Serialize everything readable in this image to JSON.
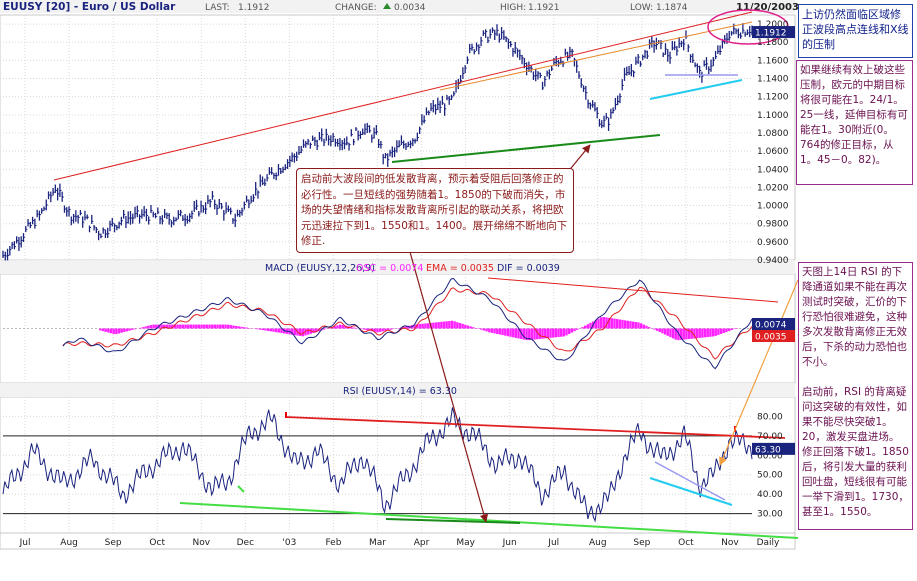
{
  "header": {
    "symbol": "EUUSY [20] - Euro / US Dollar",
    "last_label": "LAST:",
    "last": "1.1912",
    "change_label": "CHANGE:",
    "change": "0.0034",
    "high_label": "HIGH:",
    "high": "1.1921",
    "low_label": "LOW:",
    "low": "1.1874",
    "date": "11/20/2003"
  },
  "annotations": {
    "blue_note": "上访仍然面临区域修正波段高点连线和X线的压制",
    "purple_note_1": "如果继续有效上破这些压制，欧元的中期目标将很可能在1。24/1。25一线，延伸目标有可能在1。30附近(0。764的修正目标，从1。45－0。82)。",
    "red_note": "启动前大波段间的低发散背离，预示着受阻后回落修正的必行性。一旦短线的强势随着1。1850的下破而消失，市场的失望情绪和指标发散背离所引起的联动关系，将把欧元迅速拉下到1。1550和1。1400。展开绵绵不断地向下修正.",
    "purple_note_2a": "天图上14日 RSI 的下降通道如果不能在再次测试时突破，汇价的下行恐怕很难避免，这种多次发散背离修正无效后，下杀的动力恐怕也不小。",
    "purple_note_2b": "启动前，RSI 的背离疑问这突破的有效性，如果不能尽快突破1。20，激发买盘进场。修正回落下破1。1850后，将引发大量的获利回吐盘，短线很有可能一举下滑到1。1730，甚至1。1550。"
  },
  "colors": {
    "price": "#1a237e",
    "trendline_red": "#e02020",
    "trendline_orange": "#e8882a",
    "support_green": "#1a8a1a",
    "cyan": "#22ccee",
    "lavender": "#9999ee",
    "macd_line": "#1a237e",
    "signal_line": "#e02020",
    "histogram": "#ff22ff",
    "rsi_line": "#1a237e",
    "rsi_support": "#44dd44",
    "arrow_dark": "#8b1a1a",
    "arrow_orange": "#f0a040",
    "circle_pink": "#e0208a"
  },
  "chart_data": [
    {
      "type": "line",
      "panel": "price",
      "x_range": [
        "2002-07",
        "2003-11-20"
      ],
      "ylim": [
        0.94,
        1.21
      ],
      "yticks": [
        "0.9400",
        "0.9600",
        "0.9800",
        "1.0000",
        "1.0200",
        "1.0400",
        "1.0600",
        "1.0800",
        "1.1000",
        "1.1200",
        "1.1400",
        "1.1600",
        "1.1800",
        "1.2000"
      ],
      "last_value": "1.1912",
      "points": [
        [
          0,
          0.945
        ],
        [
          0.02,
          0.962
        ],
        [
          0.05,
          0.99
        ],
        [
          0.07,
          1.02
        ],
        [
          0.09,
          0.99
        ],
        [
          0.11,
          0.985
        ],
        [
          0.13,
          0.97
        ],
        [
          0.16,
          0.985
        ],
        [
          0.19,
          0.99
        ],
        [
          0.22,
          0.985
        ],
        [
          0.25,
          0.99
        ],
        [
          0.28,
          1.005
        ],
        [
          0.31,
          0.985
        ],
        [
          0.33,
          1.01
        ],
        [
          0.36,
          1.035
        ],
        [
          0.39,
          1.055
        ],
        [
          0.41,
          1.07
        ],
        [
          0.44,
          1.075
        ],
        [
          0.46,
          1.07
        ],
        [
          0.48,
          1.085
        ],
        [
          0.5,
          1.075
        ],
        [
          0.51,
          1.05
        ],
        [
          0.53,
          1.065
        ],
        [
          0.55,
          1.075
        ],
        [
          0.57,
          1.105
        ],
        [
          0.6,
          1.115
        ],
        [
          0.62,
          1.165
        ],
        [
          0.64,
          1.185
        ],
        [
          0.66,
          1.19
        ],
        [
          0.68,
          1.175
        ],
        [
          0.7,
          1.155
        ],
        [
          0.72,
          1.135
        ],
        [
          0.74,
          1.16
        ],
        [
          0.76,
          1.165
        ],
        [
          0.78,
          1.12
        ],
        [
          0.8,
          1.09
        ],
        [
          0.81,
          1.095
        ],
        [
          0.83,
          1.14
        ],
        [
          0.85,
          1.16
        ],
        [
          0.87,
          1.18
        ],
        [
          0.89,
          1.165
        ],
        [
          0.91,
          1.185
        ],
        [
          0.93,
          1.145
        ],
        [
          0.95,
          1.16
        ],
        [
          0.97,
          1.19
        ],
        [
          1.0,
          1.195
        ]
      ]
    },
    {
      "type": "line",
      "panel": "macd",
      "title": "MACD (EUUSY,12,26,9)",
      "legend": [
        {
          "label": "OSC = 0.0074",
          "color": "#ff22ff"
        },
        {
          "label": "EMA = 0.0035",
          "color": "#e02020"
        },
        {
          "label": "DIF = 0.0039",
          "color": "#1a237e"
        }
      ],
      "last_values": [
        "0.0074",
        "0.0035"
      ],
      "x": [
        0,
        0.05,
        0.1,
        0.15,
        0.2,
        0.25,
        0.3,
        0.35,
        0.4,
        0.45,
        0.5,
        0.55,
        0.6,
        0.65,
        0.7,
        0.75,
        0.8,
        0.85,
        0.9,
        0.95,
        1.0
      ],
      "series": [
        {
          "values": [
            0.3,
            -0.6,
            -0.2,
            -0.5,
            0.0,
            0.3,
            0.6,
            0.3,
            -0.3,
            0.2,
            -0.2,
            0.1,
            1.0,
            0.6,
            -0.2,
            -0.7,
            0.3,
            1.0,
            -0.1,
            -0.8,
            0.2
          ]
        },
        {
          "values": [
            0.1,
            -0.4,
            -0.3,
            -0.35,
            -0.1,
            0.2,
            0.5,
            0.35,
            -0.1,
            0.1,
            -0.1,
            0.0,
            0.8,
            0.7,
            0.1,
            -0.5,
            0.0,
            0.85,
            0.2,
            -0.6,
            0.05
          ]
        },
        {
          "values": [
            0.2,
            -0.2,
            0.1,
            -0.15,
            0.1,
            0.1,
            0.1,
            -0.05,
            -0.2,
            0.1,
            -0.1,
            0.1,
            0.2,
            -0.1,
            -0.3,
            -0.2,
            0.3,
            0.15,
            -0.3,
            -0.2,
            0.15
          ]
        }
      ]
    },
    {
      "type": "line",
      "panel": "rsi",
      "title": "RSI (EUUSY,14) = 63.30",
      "last_value": "63.30",
      "ylim": [
        20,
        90
      ],
      "yticks": [
        "30.00",
        "40.00",
        "50.00",
        "60.00",
        "70.00",
        "80.00"
      ],
      "reference_lines": [
        70,
        30
      ],
      "x_labels": [
        "Jul",
        "Aug",
        "Sep",
        "Oct",
        "Nov",
        "Dec",
        "'03",
        "Feb",
        "Mar",
        "Apr",
        "May",
        "Jun",
        "Jul",
        "Aug",
        "Sep",
        "Oct",
        "Nov",
        "Daily"
      ],
      "points": [
        [
          0,
          40
        ],
        [
          0.04,
          62
        ],
        [
          0.08,
          45
        ],
        [
          0.12,
          58
        ],
        [
          0.16,
          40
        ],
        [
          0.2,
          55
        ],
        [
          0.24,
          65
        ],
        [
          0.28,
          42
        ],
        [
          0.3,
          47
        ],
        [
          0.33,
          72
        ],
        [
          0.36,
          78
        ],
        [
          0.39,
          55
        ],
        [
          0.42,
          62
        ],
        [
          0.45,
          45
        ],
        [
          0.48,
          60
        ],
        [
          0.51,
          35
        ],
        [
          0.54,
          50
        ],
        [
          0.57,
          68
        ],
        [
          0.6,
          78
        ],
        [
          0.63,
          70
        ],
        [
          0.66,
          55
        ],
        [
          0.69,
          60
        ],
        [
          0.72,
          40
        ],
        [
          0.75,
          52
        ],
        [
          0.78,
          30
        ],
        [
          0.81,
          38
        ],
        [
          0.83,
          60
        ],
        [
          0.85,
          72
        ],
        [
          0.88,
          58
        ],
        [
          0.91,
          70
        ],
        [
          0.93,
          45
        ],
        [
          0.95,
          50
        ],
        [
          0.97,
          68
        ],
        [
          1.0,
          64
        ]
      ]
    }
  ]
}
